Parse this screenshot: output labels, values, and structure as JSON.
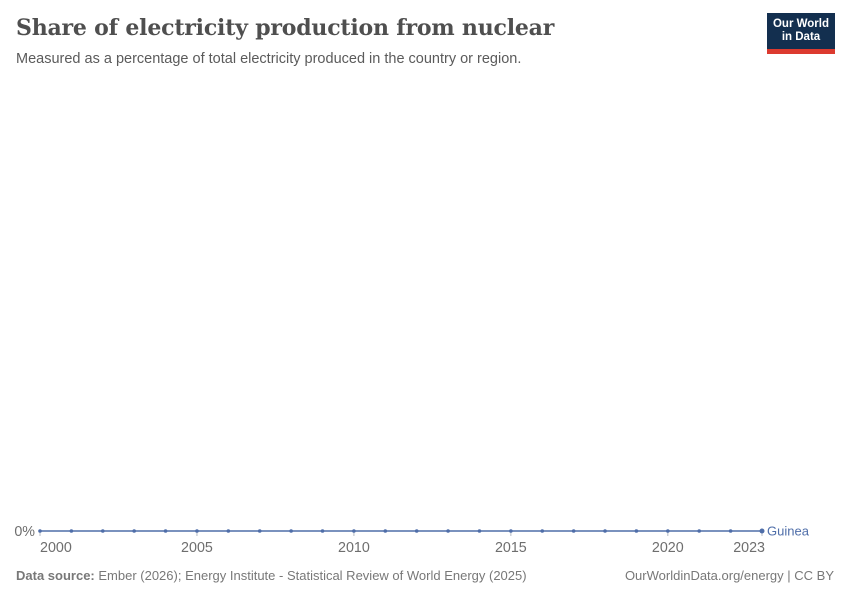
{
  "header": {
    "title": "Share of electricity production from nuclear",
    "subtitle": "Measured as a percentage of total electricity produced in the country or region.",
    "logo": {
      "line1": "Our World",
      "line2": "in Data",
      "bg_color": "#132f4f",
      "accent_color": "#dc3a2f"
    }
  },
  "chart_data": {
    "type": "line",
    "title": "Share of electricity production from nuclear",
    "subtitle": "Measured as a percentage of total electricity produced in the country or region.",
    "x": [
      2000,
      2001,
      2002,
      2003,
      2004,
      2005,
      2006,
      2007,
      2008,
      2009,
      2010,
      2011,
      2012,
      2013,
      2014,
      2015,
      2016,
      2017,
      2018,
      2019,
      2020,
      2021,
      2022,
      2023
    ],
    "series": [
      {
        "name": "Guinea",
        "color": "#4f6ea9",
        "values": [
          0,
          0,
          0,
          0,
          0,
          0,
          0,
          0,
          0,
          0,
          0,
          0,
          0,
          0,
          0,
          0,
          0,
          0,
          0,
          0,
          0,
          0,
          0,
          0
        ]
      }
    ],
    "x_ticks": [
      2000,
      2005,
      2010,
      2015,
      2020,
      2023
    ],
    "y_axis": {
      "min": 0,
      "tick_label": "0%",
      "unit": "%"
    },
    "grid": false,
    "legend_position": "line-end-label",
    "axis_label_color": "#6e6e6e",
    "tick_mark_color": "#b5bbc4"
  },
  "footer": {
    "source_label": "Data source:",
    "source_text": " Ember (2026); Energy Institute - Statistical Review of World Energy (2025)",
    "link_text": "OurWorldinData.org/energy | CC BY"
  }
}
